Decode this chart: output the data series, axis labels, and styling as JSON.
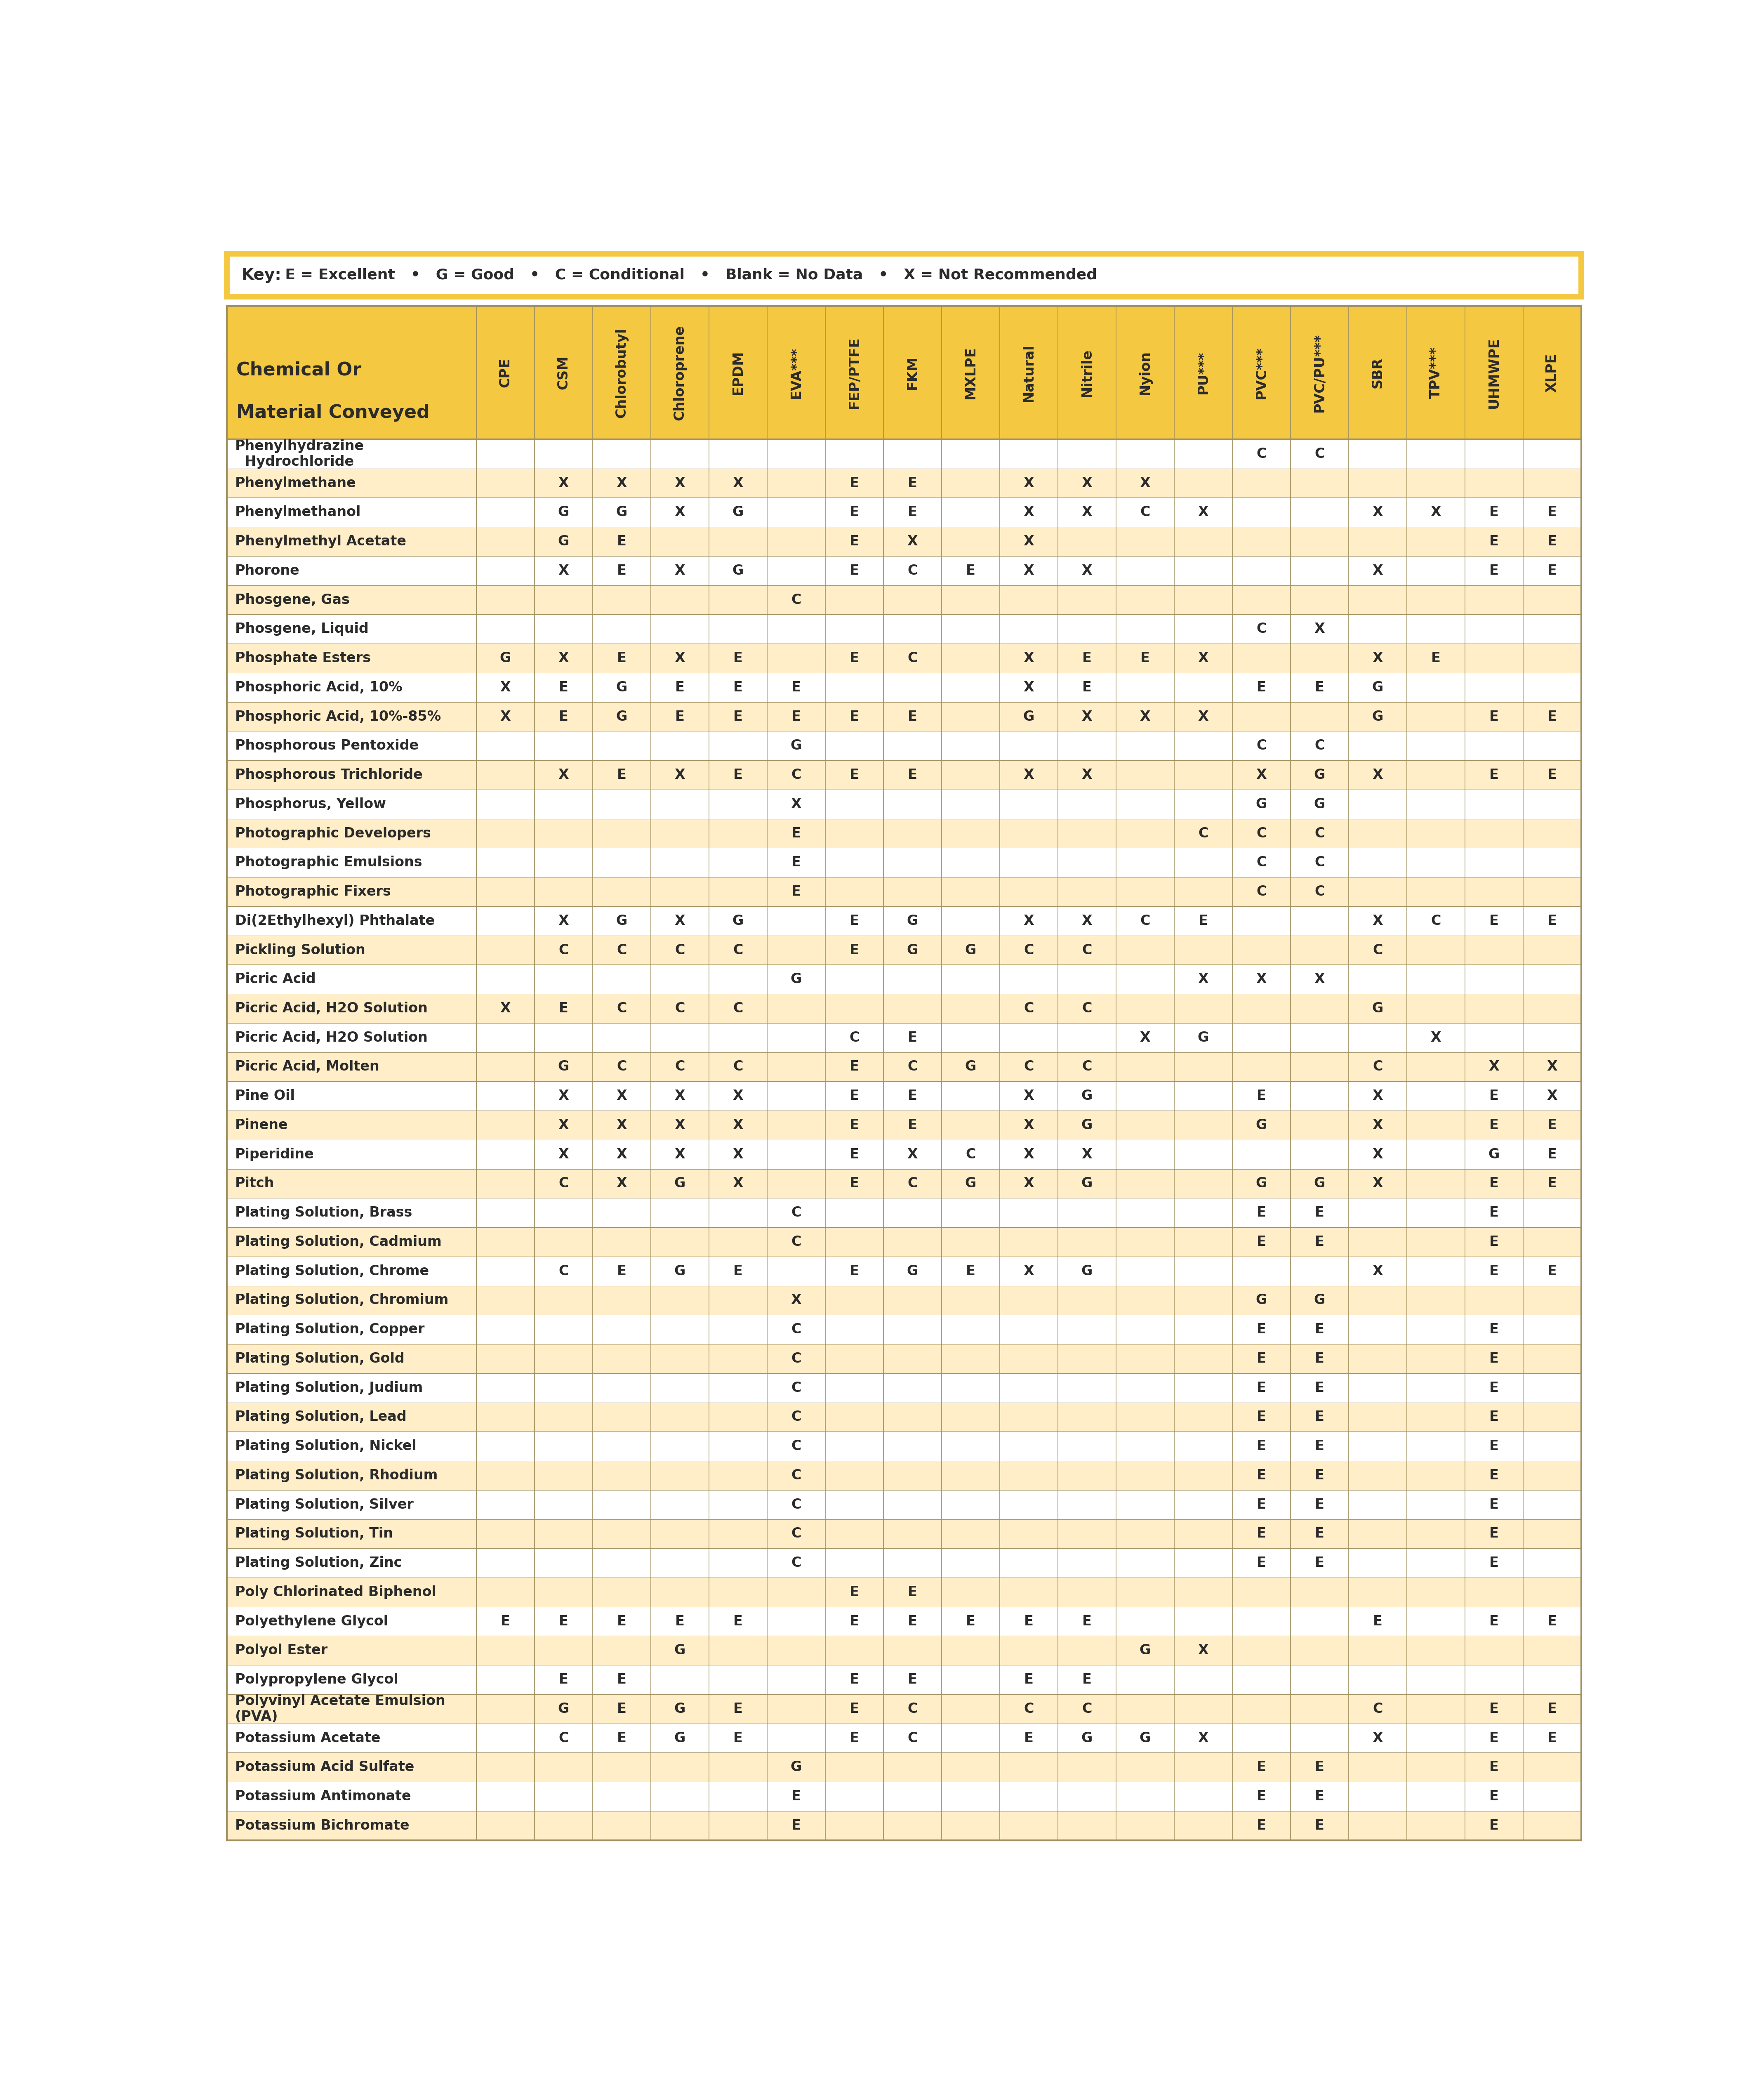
{
  "key_text_bold": "Key:",
  "key_text_rest": "  E = Excellent   •   G = Good   •   C = Conditional   •   Blank = No Data   •   X = Not Recommended",
  "columns": [
    "CPE",
    "CSM",
    "Chlorobutyl",
    "Chloroprene",
    "EPDM",
    "EVA***",
    "FEP/PTFE",
    "FKM",
    "MXLPE",
    "Natural",
    "Nitrile",
    "Nyion",
    "PU***",
    "PVC***",
    "PVC/PU***",
    "SBR",
    "TPV***",
    "UHMWPE",
    "XLPE"
  ],
  "col_header_line1": "Chemical Or",
  "col_header_line2": "Material Conveyed",
  "rows": [
    {
      "chemical": "Phenylhydrazine\n  Hydrochloride",
      "data": {
        "PVC***": "C",
        "PVC/PU***": "C"
      }
    },
    {
      "chemical": "Phenylmethane",
      "data": {
        "CSM": "X",
        "Chlorobutyl": "X",
        "Chloroprene": "X",
        "EPDM": "X",
        "FEP/PTFE": "E",
        "FKM": "E",
        "Natural": "X",
        "Nitrile": "X",
        "Nyion": "X"
      }
    },
    {
      "chemical": "Phenylmethanol",
      "data": {
        "CSM": "G",
        "Chlorobutyl": "G",
        "Chloroprene": "X",
        "EPDM": "G",
        "FEP/PTFE": "E",
        "FKM": "E",
        "Natural": "X",
        "Nitrile": "X",
        "Nyion": "C",
        "PU***": "X",
        "SBR": "X",
        "TPV***": "X",
        "UHMWPE": "E",
        "XLPE": "E"
      }
    },
    {
      "chemical": "Phenylmethyl Acetate",
      "data": {
        "CSM": "G",
        "Chlorobutyl": "E",
        "FEP/PTFE": "E",
        "FKM": "X",
        "Natural": "X",
        "UHMWPE": "E",
        "XLPE": "E"
      }
    },
    {
      "chemical": "Phorone",
      "data": {
        "CSM": "X",
        "Chlorobutyl": "E",
        "Chloroprene": "X",
        "EPDM": "G",
        "FEP/PTFE": "E",
        "FKM": "C",
        "MXLPE": "E",
        "Natural": "X",
        "Nitrile": "X",
        "SBR": "X",
        "UHMWPE": "E",
        "XLPE": "E"
      }
    },
    {
      "chemical": "Phosgene, Gas",
      "data": {
        "EVA***": "C"
      }
    },
    {
      "chemical": "Phosgene, Liquid",
      "data": {
        "PVC***": "C",
        "PVC/PU***": "X"
      }
    },
    {
      "chemical": "Phosphate Esters",
      "data": {
        "CPE": "G",
        "CSM": "X",
        "Chlorobutyl": "E",
        "Chloroprene": "X",
        "EPDM": "E",
        "FEP/PTFE": "E",
        "FKM": "C",
        "Natural": "X",
        "Nitrile": "E",
        "Nyion": "E",
        "PU***": "X",
        "SBR": "X",
        "TPV***": "E"
      }
    },
    {
      "chemical": "Phosphoric Acid, 10%",
      "data": {
        "CPE": "X",
        "CSM": "E",
        "Chlorobutyl": "G",
        "Chloroprene": "E",
        "EPDM": "E",
        "EVA***": "E",
        "Natural": "X",
        "Nitrile": "E",
        "PVC***": "E",
        "PVC/PU***": "E",
        "SBR": "G"
      }
    },
    {
      "chemical": "Phosphoric Acid, 10%-85%",
      "data": {
        "CPE": "X",
        "CSM": "E",
        "Chlorobutyl": "G",
        "Chloroprene": "E",
        "EPDM": "E",
        "EVA***": "E",
        "FEP/PTFE": "E",
        "FKM": "E",
        "Natural": "G",
        "Nitrile": "X",
        "Nyion": "X",
        "PU***": "X",
        "SBR": "G",
        "UHMWPE": "E",
        "XLPE": "E"
      }
    },
    {
      "chemical": "Phosphorous Pentoxide",
      "data": {
        "EVA***": "G",
        "PVC***": "C",
        "PVC/PU***": "C"
      }
    },
    {
      "chemical": "Phosphorous Trichloride",
      "data": {
        "CSM": "X",
        "Chlorobutyl": "E",
        "Chloroprene": "X",
        "EPDM": "E",
        "EVA***": "C",
        "FEP/PTFE": "E",
        "FKM": "E",
        "Natural": "X",
        "Nitrile": "X",
        "PVC***": "X",
        "PVC/PU***": "G",
        "SBR": "X",
        "UHMWPE": "E",
        "XLPE": "E"
      }
    },
    {
      "chemical": "Phosphorus, Yellow",
      "data": {
        "EVA***": "X",
        "PVC***": "G",
        "PVC/PU***": "G"
      }
    },
    {
      "chemical": "Photographic Developers",
      "data": {
        "EVA***": "E",
        "PU***": "C",
        "PVC***": "C",
        "PVC/PU***": "C"
      }
    },
    {
      "chemical": "Photographic Emulsions",
      "data": {
        "EVA***": "E",
        "PVC***": "C",
        "PVC/PU***": "C"
      }
    },
    {
      "chemical": "Photographic Fixers",
      "data": {
        "EVA***": "E",
        "PVC***": "C",
        "PVC/PU***": "C"
      }
    },
    {
      "chemical": "Di(2Ethylhexyl) Phthalate",
      "data": {
        "CSM": "X",
        "Chlorobutyl": "G",
        "Chloroprene": "X",
        "EPDM": "G",
        "FEP/PTFE": "E",
        "FKM": "G",
        "Natural": "X",
        "Nitrile": "X",
        "Nyion": "C",
        "PU***": "E",
        "SBR": "X",
        "TPV***": "C",
        "UHMWPE": "E",
        "XLPE": "E"
      }
    },
    {
      "chemical": "Pickling Solution",
      "data": {
        "CSM": "C",
        "Chlorobutyl": "C",
        "Chloroprene": "C",
        "EPDM": "C",
        "FEP/PTFE": "E",
        "FKM": "G",
        "MXLPE": "G",
        "Natural": "C",
        "Nitrile": "C",
        "SBR": "C"
      }
    },
    {
      "chemical": "Picric Acid",
      "data": {
        "EVA***": "G",
        "PU***": "X",
        "PVC***": "X",
        "PVC/PU***": "X"
      }
    },
    {
      "chemical": "Picric Acid, H2O Solution",
      "data": {
        "CPE": "X",
        "CSM": "E",
        "Chlorobutyl": "C",
        "Chloroprene": "C",
        "EPDM": "C",
        "Natural": "C",
        "Nitrile": "C",
        "SBR": "G"
      }
    },
    {
      "chemical": "Picric Acid, H2O Solution",
      "data": {
        "FEP/PTFE": "C",
        "FKM": "E",
        "Nyion": "X",
        "PU***": "G",
        "TPV***": "X"
      }
    },
    {
      "chemical": "Picric Acid, Molten",
      "data": {
        "CSM": "G",
        "Chlorobutyl": "C",
        "Chloroprene": "C",
        "EPDM": "C",
        "FEP/PTFE": "E",
        "FKM": "C",
        "MXLPE": "G",
        "Natural": "C",
        "Nitrile": "C",
        "SBR": "C",
        "UHMWPE": "X",
        "XLPE": "X"
      }
    },
    {
      "chemical": "Pine Oil",
      "data": {
        "CSM": "X",
        "Chlorobutyl": "X",
        "Chloroprene": "X",
        "EPDM": "X",
        "FEP/PTFE": "E",
        "FKM": "E",
        "Natural": "X",
        "Nitrile": "G",
        "PVC***": "E",
        "SBR": "X",
        "UHMWPE": "E",
        "XLPE": "X"
      }
    },
    {
      "chemical": "Pinene",
      "data": {
        "CSM": "X",
        "Chlorobutyl": "X",
        "Chloroprene": "X",
        "EPDM": "X",
        "FEP/PTFE": "E",
        "FKM": "E",
        "Natural": "X",
        "Nitrile": "G",
        "PVC***": "G",
        "SBR": "X",
        "UHMWPE": "E",
        "XLPE": "E"
      }
    },
    {
      "chemical": "Piperidine",
      "data": {
        "CSM": "X",
        "Chlorobutyl": "X",
        "Chloroprene": "X",
        "EPDM": "X",
        "FEP/PTFE": "E",
        "FKM": "X",
        "MXLPE": "C",
        "Natural": "X",
        "Nitrile": "X",
        "SBR": "X",
        "UHMWPE": "G",
        "XLPE": "E"
      }
    },
    {
      "chemical": "Pitch",
      "data": {
        "CSM": "C",
        "Chlorobutyl": "X",
        "Chloroprene": "G",
        "EPDM": "X",
        "FEP/PTFE": "E",
        "FKM": "C",
        "MXLPE": "G",
        "Natural": "X",
        "Nitrile": "G",
        "PVC***": "G",
        "PVC/PU***": "G",
        "SBR": "X",
        "UHMWPE": "E",
        "XLPE": "E"
      }
    },
    {
      "chemical": "Plating Solution, Brass",
      "data": {
        "EVA***": "C",
        "PVC***": "E",
        "PVC/PU***": "E",
        "UHMWPE": "E"
      }
    },
    {
      "chemical": "Plating Solution, Cadmium",
      "data": {
        "EVA***": "C",
        "PVC***": "E",
        "PVC/PU***": "E",
        "UHMWPE": "E"
      }
    },
    {
      "chemical": "Plating Solution, Chrome",
      "data": {
        "CSM": "C",
        "Chlorobutyl": "E",
        "Chloroprene": "G",
        "EPDM": "E",
        "FEP/PTFE": "E",
        "FKM": "G",
        "MXLPE": "E",
        "Natural": "X",
        "Nitrile": "G",
        "SBR": "X",
        "UHMWPE": "E",
        "XLPE": "E"
      }
    },
    {
      "chemical": "Plating Solution, Chromium",
      "data": {
        "EVA***": "X",
        "PVC***": "G",
        "PVC/PU***": "G"
      }
    },
    {
      "chemical": "Plating Solution, Copper",
      "data": {
        "EVA***": "C",
        "PVC***": "E",
        "PVC/PU***": "E",
        "UHMWPE": "E"
      }
    },
    {
      "chemical": "Plating Solution, Gold",
      "data": {
        "EVA***": "C",
        "PVC***": "E",
        "PVC/PU***": "E",
        "UHMWPE": "E"
      }
    },
    {
      "chemical": "Plating Solution, Judium",
      "data": {
        "EVA***": "C",
        "PVC***": "E",
        "PVC/PU***": "E",
        "UHMWPE": "E"
      }
    },
    {
      "chemical": "Plating Solution, Lead",
      "data": {
        "EVA***": "C",
        "PVC***": "E",
        "PVC/PU***": "E",
        "UHMWPE": "E"
      }
    },
    {
      "chemical": "Plating Solution, Nickel",
      "data": {
        "EVA***": "C",
        "PVC***": "E",
        "PVC/PU***": "E",
        "UHMWPE": "E"
      }
    },
    {
      "chemical": "Plating Solution, Rhodium",
      "data": {
        "EVA***": "C",
        "PVC***": "E",
        "PVC/PU***": "E",
        "UHMWPE": "E"
      }
    },
    {
      "chemical": "Plating Solution, Silver",
      "data": {
        "EVA***": "C",
        "PVC***": "E",
        "PVC/PU***": "E",
        "UHMWPE": "E"
      }
    },
    {
      "chemical": "Plating Solution, Tin",
      "data": {
        "EVA***": "C",
        "PVC***": "E",
        "PVC/PU***": "E",
        "UHMWPE": "E"
      }
    },
    {
      "chemical": "Plating Solution, Zinc",
      "data": {
        "EVA***": "C",
        "PVC***": "E",
        "PVC/PU***": "E",
        "UHMWPE": "E"
      }
    },
    {
      "chemical": "Poly Chlorinated Biphenol",
      "data": {
        "FEP/PTFE": "E",
        "FKM": "E"
      }
    },
    {
      "chemical": "Polyethylene Glycol",
      "data": {
        "CPE": "E",
        "CSM": "E",
        "Chlorobutyl": "E",
        "Chloroprene": "E",
        "EPDM": "E",
        "FEP/PTFE": "E",
        "FKM": "E",
        "MXLPE": "E",
        "Natural": "E",
        "Nitrile": "E",
        "SBR": "E",
        "UHMWPE": "E",
        "XLPE": "E"
      }
    },
    {
      "chemical": "Polyol Ester",
      "data": {
        "Chloroprene": "G",
        "Nyion": "G",
        "PU***": "X"
      }
    },
    {
      "chemical": "Polypropylene Glycol",
      "data": {
        "CSM": "E",
        "Chlorobutyl": "E",
        "FEP/PTFE": "E",
        "FKM": "E",
        "Natural": "E",
        "Nitrile": "E"
      }
    },
    {
      "chemical": "Polyvinyl Acetate Emulsion\n(PVA)",
      "data": {
        "CSM": "G",
        "Chlorobutyl": "E",
        "Chloroprene": "G",
        "EPDM": "E",
        "FEP/PTFE": "E",
        "FKM": "C",
        "Natural": "C",
        "Nitrile": "C",
        "SBR": "C",
        "UHMWPE": "E",
        "XLPE": "E"
      }
    },
    {
      "chemical": "Potassium Acetate",
      "data": {
        "CSM": "C",
        "Chlorobutyl": "E",
        "Chloroprene": "G",
        "EPDM": "E",
        "FEP/PTFE": "E",
        "FKM": "C",
        "Natural": "E",
        "Nitrile": "G",
        "Nyion": "G",
        "PU***": "X",
        "SBR": "X",
        "UHMWPE": "E",
        "XLPE": "E"
      }
    },
    {
      "chemical": "Potassium Acid Sulfate",
      "data": {
        "EVA***": "G",
        "PVC***": "E",
        "PVC/PU***": "E",
        "UHMWPE": "E"
      }
    },
    {
      "chemical": "Potassium Antimonate",
      "data": {
        "EVA***": "E",
        "PVC***": "E",
        "PVC/PU***": "E",
        "UHMWPE": "E"
      }
    },
    {
      "chemical": "Potassium Bichromate",
      "data": {
        "EVA***": "E",
        "PVC***": "E",
        "PVC/PU***": "E",
        "UHMWPE": "E"
      }
    }
  ],
  "bg_color_header": "#F5C842",
  "bg_color_odd": "#FFFFFF",
  "bg_color_even": "#FFEEC8",
  "text_color": "#2B2B2B",
  "grid_color": "#A09060",
  "header_border_color": "#A09060",
  "key_border_color": "#F5C842"
}
